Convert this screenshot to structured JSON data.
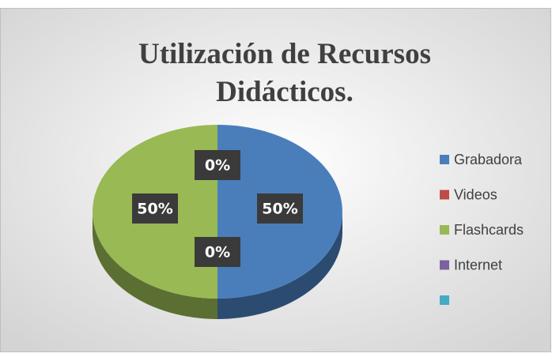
{
  "chart_data": {
    "type": "pie",
    "title": "Utilización de Recursos Didácticos.",
    "categories": [
      "Grabadora",
      "Videos",
      "Flashcards",
      "Internet",
      null
    ],
    "values": [
      50,
      0,
      50,
      0,
      null
    ],
    "value_labels": [
      "50%",
      "0%",
      "50%",
      "0%",
      null
    ],
    "colors": [
      "#4a7ebb",
      "#be4b48",
      "#98b954",
      "#7d60a0",
      "#46aac5"
    ],
    "legend": "right"
  }
}
